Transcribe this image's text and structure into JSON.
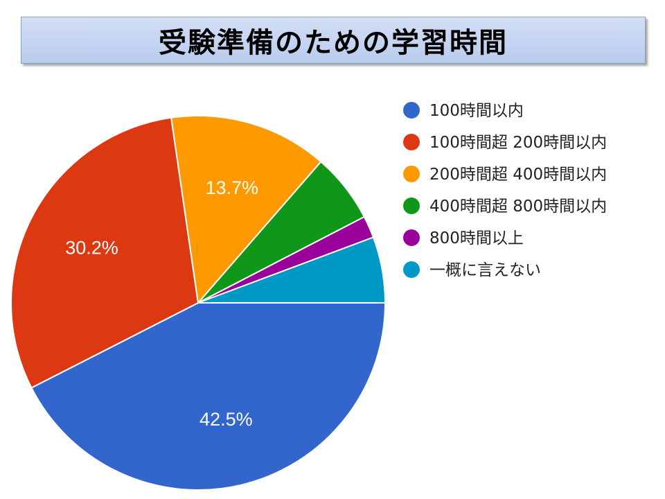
{
  "title": "受験準備のための学習時間",
  "colors": {
    "title_bg": "#c6d5f2",
    "slice_border": "#ffffff",
    "label_text": "#ffffff"
  },
  "chart_data": {
    "type": "pie",
    "title": "受験準備のための学習時間",
    "start_angle_deg": 0,
    "direction": "clockwise",
    "legend_position": "right",
    "slices": [
      {
        "label": "100時間以内",
        "value": 42.5,
        "display": "42.5%",
        "color": "#3366cc"
      },
      {
        "label": "100時間超 200時間以内",
        "value": 30.2,
        "display": "30.2%",
        "color": "#dc3912"
      },
      {
        "label": "200時間超 400時間以内",
        "value": 13.7,
        "display": "13.7%",
        "color": "#ff9900"
      },
      {
        "label": "400時間超 800時間以内",
        "value": 6.0,
        "display": "",
        "color": "#109618"
      },
      {
        "label": "800時間以上",
        "value": 1.9,
        "display": "",
        "color": "#990099"
      },
      {
        "label": "一概に言えない",
        "value": 5.7,
        "display": "",
        "color": "#0099c6"
      }
    ]
  }
}
